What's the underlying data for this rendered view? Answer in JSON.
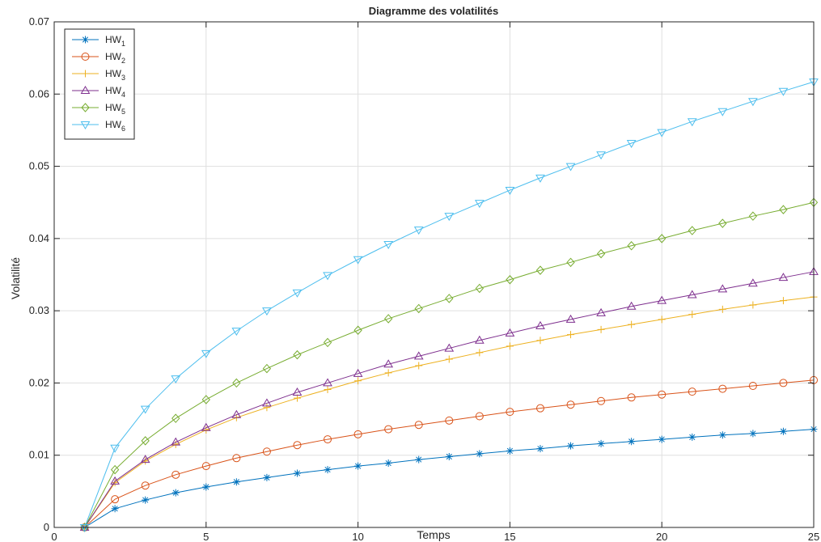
{
  "chart_data": {
    "type": "line",
    "title": "Diagramme des volatilités",
    "xlabel": "Temps",
    "ylabel": "Volatilité",
    "xlim": [
      0,
      25
    ],
    "ylim": [
      0,
      0.07
    ],
    "xticks": [
      0,
      5,
      10,
      15,
      20,
      25
    ],
    "xtick_labels": [
      "0",
      "5",
      "10",
      "15",
      "20",
      "25"
    ],
    "yticks": [
      0,
      0.01,
      0.02,
      0.03,
      0.04,
      0.05,
      0.06,
      0.07
    ],
    "ytick_labels": [
      "0",
      "0.01",
      "0.02",
      "0.03",
      "0.04",
      "0.05",
      "0.06",
      "0.07"
    ],
    "grid": true,
    "legend_position": "top-left",
    "x": [
      1,
      2,
      3,
      4,
      5,
      6,
      7,
      8,
      9,
      10,
      11,
      12,
      13,
      14,
      15,
      16,
      17,
      18,
      19,
      20,
      21,
      22,
      23,
      24,
      25
    ],
    "series": [
      {
        "name": "HW1",
        "label_main": "HW",
        "label_sub": "1",
        "color": "#0072BD",
        "marker": "asterisk",
        "values": [
          0,
          0.0026,
          0.0038,
          0.0048,
          0.0056,
          0.0063,
          0.0069,
          0.0075,
          0.008,
          0.0085,
          0.0089,
          0.0094,
          0.0098,
          0.0102,
          0.0106,
          0.0109,
          0.0113,
          0.0116,
          0.0119,
          0.0122,
          0.0125,
          0.0128,
          0.013,
          0.0133,
          0.0136
        ]
      },
      {
        "name": "HW2",
        "label_main": "HW",
        "label_sub": "2",
        "color": "#D95319",
        "marker": "circle",
        "values": [
          0,
          0.0039,
          0.0058,
          0.0073,
          0.0085,
          0.0096,
          0.0105,
          0.0114,
          0.0122,
          0.0129,
          0.0136,
          0.0142,
          0.0148,
          0.0154,
          0.016,
          0.0165,
          0.017,
          0.0175,
          0.018,
          0.0184,
          0.0188,
          0.0192,
          0.0196,
          0.02,
          0.0204
        ]
      },
      {
        "name": "HW3",
        "label_main": "HW",
        "label_sub": "3",
        "color": "#EDB120",
        "marker": "plus",
        "values": [
          0,
          0.0062,
          0.0092,
          0.0115,
          0.0135,
          0.0152,
          0.0166,
          0.0179,
          0.0191,
          0.0203,
          0.0214,
          0.0224,
          0.0233,
          0.0242,
          0.0251,
          0.0259,
          0.0267,
          0.0274,
          0.0281,
          0.0288,
          0.0295,
          0.0302,
          0.0308,
          0.0314,
          0.0319
        ]
      },
      {
        "name": "HW4",
        "label_main": "HW",
        "label_sub": "4",
        "color": "#7E2F8E",
        "marker": "triangle-up",
        "values": [
          0,
          0.0064,
          0.0094,
          0.0118,
          0.0138,
          0.0156,
          0.0172,
          0.0187,
          0.02,
          0.0213,
          0.0226,
          0.0237,
          0.0248,
          0.0259,
          0.0269,
          0.0279,
          0.0288,
          0.0297,
          0.0306,
          0.0314,
          0.0322,
          0.033,
          0.0338,
          0.0346,
          0.0354
        ]
      },
      {
        "name": "HW5",
        "label_main": "HW",
        "label_sub": "5",
        "color": "#77AC30",
        "marker": "diamond",
        "values": [
          0,
          0.008,
          0.012,
          0.0151,
          0.0177,
          0.02,
          0.022,
          0.0239,
          0.0256,
          0.0273,
          0.0289,
          0.0303,
          0.0317,
          0.0331,
          0.0343,
          0.0356,
          0.0367,
          0.0379,
          0.039,
          0.04,
          0.0411,
          0.0421,
          0.0431,
          0.044,
          0.045
        ]
      },
      {
        "name": "HW6",
        "label_main": "HW",
        "label_sub": "6",
        "color": "#4DBEEE",
        "marker": "triangle-down",
        "values": [
          0,
          0.011,
          0.0164,
          0.0206,
          0.0241,
          0.0272,
          0.03,
          0.0325,
          0.0349,
          0.0371,
          0.0392,
          0.0412,
          0.0431,
          0.0449,
          0.0467,
          0.0484,
          0.05,
          0.0516,
          0.0532,
          0.0547,
          0.0562,
          0.0576,
          0.059,
          0.0604,
          0.0617
        ]
      }
    ]
  }
}
